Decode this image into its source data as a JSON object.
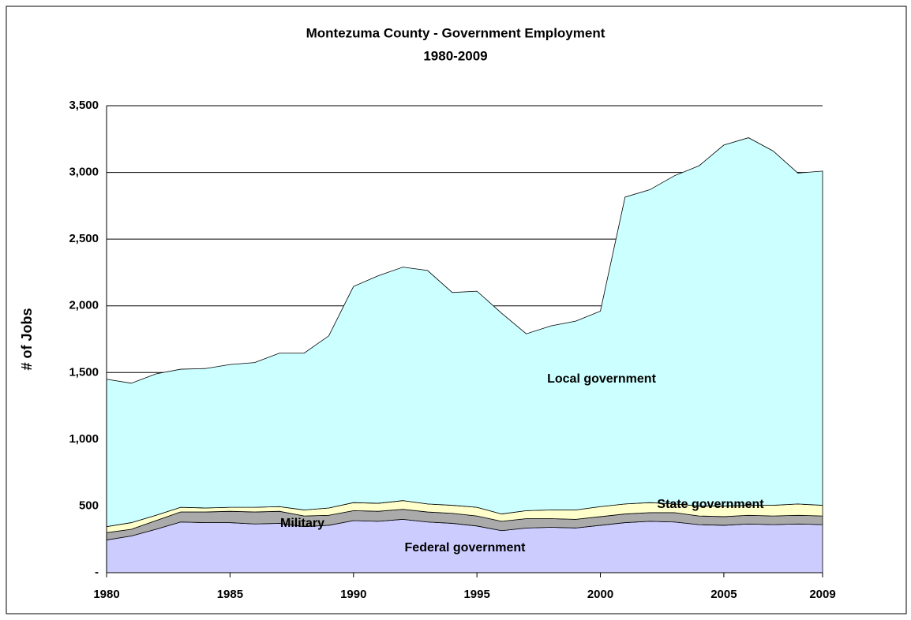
{
  "chart_data": {
    "type": "stacked-area",
    "title": "Montezuma County - Government Employment",
    "subtitle": "1980-2009",
    "y_label": "# of Jobs",
    "x": [
      1980,
      1981,
      1982,
      1983,
      1984,
      1985,
      1986,
      1987,
      1988,
      1989,
      1990,
      1991,
      1992,
      1993,
      1994,
      1995,
      1996,
      1997,
      1998,
      1999,
      2000,
      2001,
      2002,
      2003,
      2004,
      2005,
      2006,
      2007,
      2008,
      2009
    ],
    "xlim": [
      1980,
      2009
    ],
    "xticks": [
      1980,
      1985,
      1990,
      1995,
      2000,
      2005,
      2009
    ],
    "ylim": [
      0,
      3500
    ],
    "yticks": [
      {
        "value": 0,
        "label": "-"
      },
      500,
      {
        "value": 1000,
        "label": "1,000"
      },
      {
        "value": 1500,
        "label": "1,500"
      },
      {
        "value": 2000,
        "label": "2,000"
      },
      {
        "value": 2500,
        "label": "2,500"
      },
      {
        "value": 3000,
        "label": "3,000"
      },
      {
        "value": 3500,
        "label": "3,500"
      }
    ],
    "grid": true,
    "series": [
      {
        "name": "Federal government",
        "color": "#ccccff",
        "values": [
          245,
          275,
          325,
          380,
          375,
          375,
          365,
          370,
          345,
          355,
          390,
          385,
          400,
          380,
          370,
          350,
          315,
          335,
          340,
          335,
          355,
          375,
          385,
          380,
          360,
          355,
          365,
          360,
          365,
          360
        ]
      },
      {
        "name": "Military",
        "color": "#aaaaaa",
        "values": [
          55,
          50,
          65,
          75,
          80,
          85,
          90,
          90,
          80,
          75,
          75,
          75,
          75,
          75,
          75,
          75,
          70,
          70,
          65,
          65,
          65,
          65,
          65,
          70,
          65,
          65,
          65,
          65,
          65,
          65
        ]
      },
      {
        "name": "State government",
        "color": "#ffffcc",
        "values": [
          45,
          50,
          40,
          35,
          30,
          30,
          35,
          35,
          45,
          55,
          60,
          60,
          65,
          60,
          60,
          65,
          55,
          60,
          65,
          70,
          75,
          75,
          75,
          65,
          75,
          80,
          75,
          80,
          85,
          80
        ]
      },
      {
        "name": "Local government",
        "color": "#ccffff",
        "values": [
          1105,
          1045,
          1060,
          1035,
          1045,
          1070,
          1085,
          1150,
          1175,
          1290,
          1620,
          1705,
          1750,
          1750,
          1595,
          1620,
          1505,
          1325,
          1380,
          1415,
          1465,
          2300,
          2345,
          2460,
          2550,
          2705,
          2755,
          2655,
          2480,
          2505
        ]
      }
    ]
  }
}
